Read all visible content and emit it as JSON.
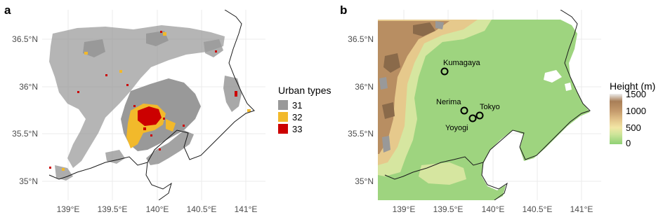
{
  "panels": [
    {
      "label": "a",
      "x_ticks": [
        "139°E",
        "139.5°E",
        "140°E",
        "140.5°E",
        "141°E"
      ],
      "y_ticks": [
        "36.5°N",
        "36°N",
        "35.5°N",
        "35°N"
      ],
      "legend": {
        "title": "Urban types",
        "entries": [
          {
            "label": "31",
            "color": "#999999"
          },
          {
            "label": "32",
            "color": "#f2b92b"
          },
          {
            "label": "33",
            "color": "#cc0000"
          }
        ]
      }
    },
    {
      "label": "b",
      "x_ticks": [
        "139°E",
        "139.5°E",
        "140°E",
        "140.5°E",
        "141°E"
      ],
      "y_ticks": [
        "36.5°N",
        "36°N",
        "35.5°N",
        "35°N"
      ],
      "legend": {
        "title": "Height (m)",
        "ticks": [
          "1500",
          "1000",
          "500",
          "0"
        ],
        "colors": [
          "#8fd175",
          "#cfe59a",
          "#f2e6a5",
          "#e0c088",
          "#c49a6c",
          "#a87e57",
          "#eeeeee"
        ]
      },
      "sites": [
        {
          "name": "Kumagaya",
          "lon": 139.38,
          "lat": 36.15
        },
        {
          "name": "Nerima",
          "lon": 139.61,
          "lat": 35.74
        },
        {
          "name": "Tokyo",
          "lon": 139.76,
          "lat": 35.69
        },
        {
          "name": "Yoyogi",
          "lon": 139.69,
          "lat": 35.67
        }
      ]
    }
  ]
}
